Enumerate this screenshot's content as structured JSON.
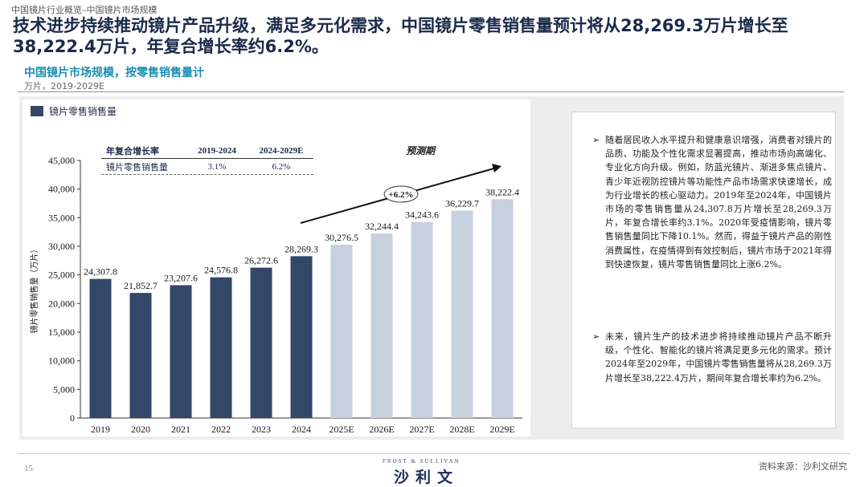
{
  "header": {
    "breadcrumb": "中国镜片行业概览–中国镜片市场规模",
    "headline": "技术进步持续推动镜片产品升级，满足多元化需求，中国镜片零售销售量预计将从28,269.3万片增长至38,222.4万片，年复合增长率约6.2%。",
    "chart_title": "中国镜片市场规模，按零售销售量计",
    "chart_unit": "万片，2019-2029E"
  },
  "legend": {
    "label": "镜片零售销售量"
  },
  "cagr_table": {
    "headers": [
      "年复合增长率",
      "2019-2024",
      "2024-2029E"
    ],
    "row": [
      "镜片零售销售量",
      "3.1%",
      "6.2%"
    ]
  },
  "forecast_label": "预测期",
  "growth_annotation": "+6.2%",
  "colors": {
    "actual": "#334768",
    "forecast": "#c7d0de",
    "title": "#1b2a4a",
    "accent": "#1a8fb5"
  },
  "chart_data": {
    "type": "bar",
    "categories": [
      "2019",
      "2020",
      "2021",
      "2022",
      "2023",
      "2024",
      "2025E",
      "2026E",
      "2027E",
      "2028E",
      "2029E"
    ],
    "values": [
      24307.8,
      21852.7,
      23207.6,
      24576.8,
      26272.6,
      28269.3,
      30276.5,
      32244.4,
      34243.6,
      36229.7,
      38222.4
    ],
    "value_labels": [
      "24,307.8",
      "21,852.7",
      "23,207.6",
      "24,576.8",
      "26,272.6",
      "28,269.3",
      "30,276.5",
      "32,244.4",
      "34,243.6",
      "36,229.7",
      "38,222.4"
    ],
    "forecast_flags": [
      false,
      false,
      false,
      false,
      false,
      false,
      true,
      true,
      true,
      true,
      true
    ],
    "ylabel": "镜片零售销售量（万片）",
    "ylim": [
      0,
      45000
    ],
    "yticks": [
      "0",
      "5,000",
      "10,000",
      "15,000",
      "20,000",
      "25,000",
      "30,000",
      "35,000",
      "40,000",
      "45,000"
    ],
    "legend": "top-left",
    "grid": false
  },
  "commentary": {
    "bullet1": "随着居民收入水平提升和健康意识增强，消费者对镜片的品质、功能及个性化需求显著提高，推动市场向高端化、专业化方向升级。例如，防蓝光镜片、渐进多焦点镜片、青少年近视防控镜片等功能性产品市场需求快速增长，成为行业增长的核心驱动力。2019年至2024年，中国镜片市场的零售销售量从24,307.8万片增长至28,269.3万片，年复合增长率约3.1%。2020年受疫情影响，镜片零售销售量同比下降10.1%。然而，得益于镜片产品的刚性消费属性，在疫情得到有效控制后，镜片市场于2021年得到快速恢复，镜片零售销售量同比上涨6.2%。",
    "bullet2": "未来，镜片生产的技术进步将持续推动镜片产品不断升级，个性化、智能化的镜片将满足更多元化的需求。预计2024年至2029年，中国镜片零售销售量将从28,269.3万片增长至38,222.4万片，期间年复合增长率约为6.2%。"
  },
  "footer": {
    "page": "15",
    "brand_en": "FROST & SULLIVAN",
    "brand_cn": "沙利文",
    "source": "资料来源：沙利文研究"
  }
}
